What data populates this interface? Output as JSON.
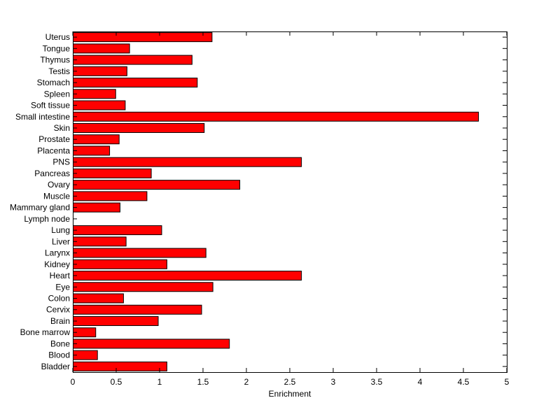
{
  "chart_data": {
    "type": "bar",
    "orientation": "horizontal",
    "title": "",
    "xlabel": "Enrichment",
    "ylabel": "",
    "xlim": [
      0,
      5
    ],
    "x_ticks": [
      0,
      0.5,
      1,
      1.5,
      2,
      2.5,
      3,
      3.5,
      4,
      4.5,
      5
    ],
    "x_tick_labels": [
      "0",
      "0.5",
      "1",
      "1.5",
      "2",
      "2.5",
      "3",
      "3.5",
      "4",
      "4.5",
      "5"
    ],
    "grid": false,
    "legend": "none",
    "bar_color": "#ff0000",
    "bar_edge_color": "#000000",
    "categories": [
      "Uterus",
      "Tongue",
      "Thymus",
      "Testis",
      "Stomach",
      "Spleen",
      "Soft tissue",
      "Small intestine",
      "Skin",
      "Prostate",
      "Placenta",
      "PNS",
      "Pancreas",
      "Ovary",
      "Muscle",
      "Mammary gland",
      "Lymph node",
      "Lung",
      "Liver",
      "Larynx",
      "Kidney",
      "Heart",
      "Eye",
      "Colon",
      "Cervix",
      "Brain",
      "Bone marrow",
      "Bone",
      "Blood",
      "Bladder"
    ],
    "values": [
      1.6,
      0.65,
      1.37,
      0.62,
      1.43,
      0.49,
      0.6,
      4.67,
      1.51,
      0.53,
      0.42,
      2.63,
      0.9,
      1.92,
      0.85,
      0.54,
      0.0,
      1.02,
      0.61,
      1.53,
      1.08,
      2.63,
      1.61,
      0.58,
      1.48,
      0.98,
      0.26,
      1.8,
      0.28,
      1.08
    ]
  }
}
